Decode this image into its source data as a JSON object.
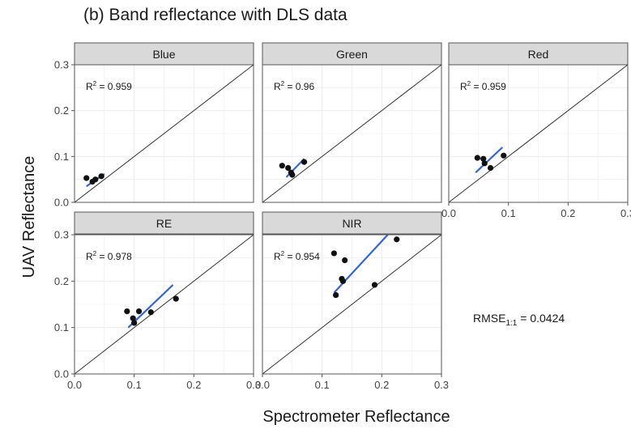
{
  "chart_data": {
    "type": "scatter",
    "title": "(b) Band reflectance with DLS data",
    "xlabel": "Spectrometer Reflectance",
    "ylabel": "UAV Reflectance",
    "xlim": [
      0,
      0.3
    ],
    "ylim": [
      0,
      0.3
    ],
    "x_ticks": [
      "0.0",
      "0.1",
      "0.2",
      "0.3"
    ],
    "y_ticks": [
      "0.0",
      "0.1",
      "0.2",
      "0.3"
    ],
    "grid": true,
    "reference_line": "1:1",
    "annotation": {
      "rmse_label": "RMSE",
      "rmse_subscript": "1:1",
      "rmse_value": " = 0.0424"
    },
    "panels": [
      {
        "name": "Blue",
        "r2_label": "R",
        "r2_exp": "2",
        "r2_value": " = 0.959",
        "points": [
          [
            0.02,
            0.053
          ],
          [
            0.03,
            0.045
          ],
          [
            0.035,
            0.05
          ],
          [
            0.045,
            0.057
          ]
        ],
        "fit": [
          [
            0.02,
            0.035
          ],
          [
            0.05,
            0.062
          ]
        ]
      },
      {
        "name": "Green",
        "r2_label": "R",
        "r2_exp": "2",
        "r2_value": " = 0.96",
        "points": [
          [
            0.033,
            0.08
          ],
          [
            0.043,
            0.075
          ],
          [
            0.048,
            0.065
          ],
          [
            0.05,
            0.06
          ],
          [
            0.07,
            0.088
          ]
        ],
        "fit": [
          [
            0.04,
            0.055
          ],
          [
            0.07,
            0.095
          ]
        ]
      },
      {
        "name": "Red",
        "r2_label": "R",
        "r2_exp": "2",
        "r2_value": " = 0.959",
        "points": [
          [
            0.048,
            0.097
          ],
          [
            0.058,
            0.095
          ],
          [
            0.06,
            0.085
          ],
          [
            0.07,
            0.075
          ],
          [
            0.092,
            0.102
          ]
        ],
        "fit": [
          [
            0.045,
            0.065
          ],
          [
            0.09,
            0.12
          ]
        ]
      },
      {
        "name": "RE",
        "r2_label": "R",
        "r2_exp": "2",
        "r2_value": " = 0.978",
        "points": [
          [
            0.088,
            0.135
          ],
          [
            0.098,
            0.12
          ],
          [
            0.1,
            0.11
          ],
          [
            0.108,
            0.135
          ],
          [
            0.128,
            0.133
          ],
          [
            0.17,
            0.162
          ]
        ],
        "fit": [
          [
            0.09,
            0.1
          ],
          [
            0.165,
            0.192
          ]
        ]
      },
      {
        "name": "NIR",
        "r2_label": "R",
        "r2_exp": "2",
        "r2_value": " = 0.954",
        "points": [
          [
            0.12,
            0.26
          ],
          [
            0.123,
            0.17
          ],
          [
            0.133,
            0.205
          ],
          [
            0.135,
            0.2
          ],
          [
            0.138,
            0.245
          ],
          [
            0.188,
            0.192
          ],
          [
            0.225,
            0.29
          ]
        ],
        "fit": [
          [
            0.12,
            0.175
          ],
          [
            0.21,
            0.3
          ]
        ]
      }
    ],
    "colors": {
      "points": "#111111",
      "fit": "#3366dd",
      "identity": "#333333",
      "strip": "#d9d9d9",
      "grid": "#ececec",
      "frame": "#555555"
    }
  }
}
